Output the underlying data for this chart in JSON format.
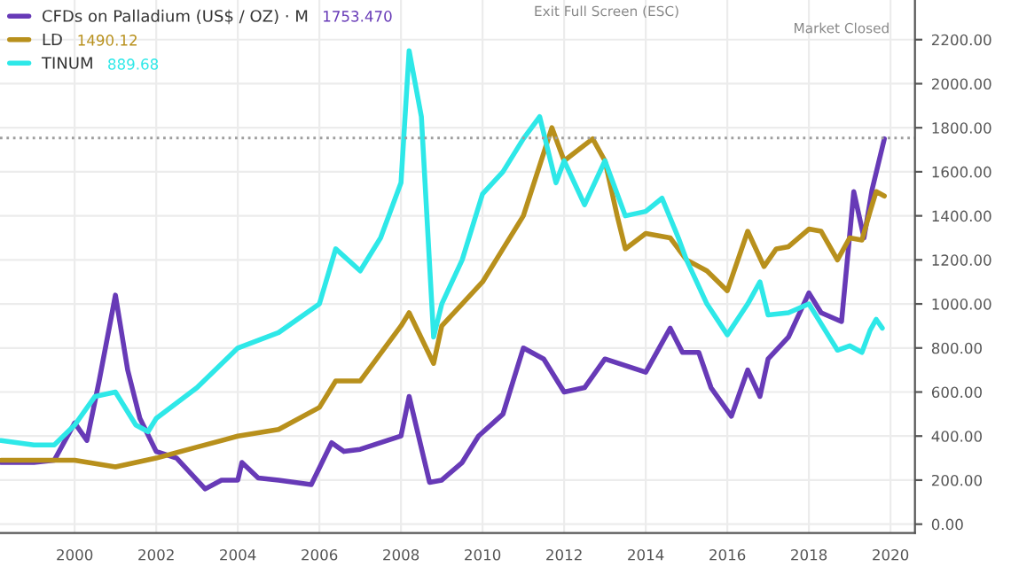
{
  "chart_data": {
    "type": "line",
    "xlim": [
      1998.17,
      2020.6
    ],
    "xticks": [
      2000,
      2002,
      2004,
      2006,
      2008,
      2010,
      2012,
      2014,
      2016,
      2018,
      2020
    ],
    "ylim": [
      -40,
      2380
    ],
    "yticks": [
      {
        "value": 0,
        "label": "0.00"
      },
      {
        "value": 200,
        "label": "200.00"
      },
      {
        "value": 400,
        "label": "400.00"
      },
      {
        "value": 600,
        "label": "600.00"
      },
      {
        "value": 800,
        "label": "800.00"
      },
      {
        "value": 1000,
        "label": "1000.00"
      },
      {
        "value": 1200,
        "label": "1200.00"
      },
      {
        "value": 1400,
        "label": "1400.00"
      },
      {
        "value": 1600,
        "label": "1600.00"
      },
      {
        "value": 1800,
        "label": "1800.00"
      },
      {
        "value": 2000,
        "label": "2000.00"
      },
      {
        "value": 2200,
        "label": "2200.00"
      }
    ],
    "grid": true,
    "legend": "top left",
    "series": [
      {
        "name": "CFDs on Palladium (US$ / OZ) · M",
        "color": "#673ab7",
        "x": [
          1998.2,
          1999.0,
          1999.5,
          2000.0,
          2000.3,
          2000.6,
          2001.0,
          2001.3,
          2001.6,
          2002.0,
          2002.5,
          2003.2,
          2003.6,
          2004.0,
          2004.1,
          2004.5,
          2005.0,
          2005.8,
          2006.3,
          2006.6,
          2007.0,
          2007.5,
          2008.0,
          2008.2,
          2008.7,
          2009.0,
          2009.5,
          2009.9,
          2010.5,
          2011.0,
          2011.5,
          2012.0,
          2012.5,
          2013.0,
          2013.5,
          2014.0,
          2014.6,
          2014.9,
          2015.3,
          2015.6,
          2016.1,
          2016.5,
          2016.8,
          2017.0,
          2017.5,
          2018.0,
          2018.3,
          2018.8,
          2019.1,
          2019.35,
          2019.55,
          2019.85
        ],
        "values": [
          280,
          280,
          290,
          460,
          380,
          650,
          1040,
          700,
          480,
          330,
          300,
          160,
          200,
          200,
          280,
          210,
          200,
          180,
          370,
          330,
          340,
          370,
          400,
          580,
          190,
          200,
          280,
          400,
          500,
          800,
          750,
          600,
          620,
          750,
          720,
          690,
          890,
          780,
          780,
          620,
          490,
          700,
          580,
          750,
          850,
          1050,
          960,
          920,
          1510,
          1300,
          1520,
          1750
        ]
      },
      {
        "name": "LD",
        "color": "#b8901c",
        "x": [
          1998.2,
          2000.0,
          2001.0,
          2002.0,
          2003.0,
          2004.0,
          2005.0,
          2006.0,
          2006.4,
          2007.0,
          2008.0,
          2008.2,
          2008.8,
          2009.0,
          2010.0,
          2010.5,
          2011.0,
          2011.7,
          2012.0,
          2012.7,
          2013.0,
          2013.3,
          2013.5,
          2014.0,
          2014.6,
          2015.0,
          2015.5,
          2016.0,
          2016.5,
          2016.9,
          2017.2,
          2017.5,
          2018.0,
          2018.3,
          2018.7,
          2019.0,
          2019.3,
          2019.5,
          2019.65,
          2019.85
        ],
        "values": [
          290,
          290,
          260,
          300,
          350,
          400,
          430,
          530,
          650,
          650,
          900,
          960,
          730,
          900,
          1100,
          1250,
          1400,
          1800,
          1650,
          1750,
          1650,
          1400,
          1250,
          1320,
          1300,
          1200,
          1150,
          1060,
          1330,
          1170,
          1250,
          1260,
          1340,
          1330,
          1200,
          1300,
          1290,
          1420,
          1510,
          1490
        ]
      },
      {
        "name": "TINUM",
        "color": "#2ee8e8",
        "x": [
          1998.2,
          1999.0,
          1999.5,
          2000.0,
          2000.5,
          2001.0,
          2001.5,
          2001.8,
          2002.0,
          2003.0,
          2004.0,
          2005.0,
          2006.0,
          2006.4,
          2007.0,
          2007.5,
          2008.0,
          2008.2,
          2008.5,
          2008.8,
          2009.0,
          2009.5,
          2010.0,
          2010.5,
          2011.0,
          2011.4,
          2011.8,
          2012.0,
          2012.5,
          2013.0,
          2013.5,
          2014.0,
          2014.4,
          2014.8,
          2015.0,
          2015.5,
          2016.0,
          2016.5,
          2016.8,
          2017.0,
          2017.5,
          2018.0,
          2018.5,
          2018.7,
          2019.0,
          2019.3,
          2019.5,
          2019.65,
          2019.8
        ],
        "values": [
          380,
          360,
          360,
          450,
          580,
          600,
          450,
          420,
          480,
          620,
          800,
          870,
          1000,
          1250,
          1150,
          1300,
          1550,
          2150,
          1850,
          850,
          1000,
          1200,
          1500,
          1600,
          1750,
          1850,
          1550,
          1650,
          1450,
          1650,
          1400,
          1420,
          1480,
          1300,
          1200,
          1000,
          860,
          1000,
          1100,
          950,
          960,
          1000,
          850,
          790,
          810,
          780,
          880,
          930,
          890
        ]
      }
    ],
    "ref_lines": [
      {
        "axis": "y",
        "value": 1753.47,
        "color": "#9e9e9e",
        "line_style": "dotted"
      }
    ],
    "annotations": [
      "1753.470",
      "1490.12",
      "889.68",
      "Market Closed",
      "Exit Full Screen (ESC)"
    ]
  }
}
